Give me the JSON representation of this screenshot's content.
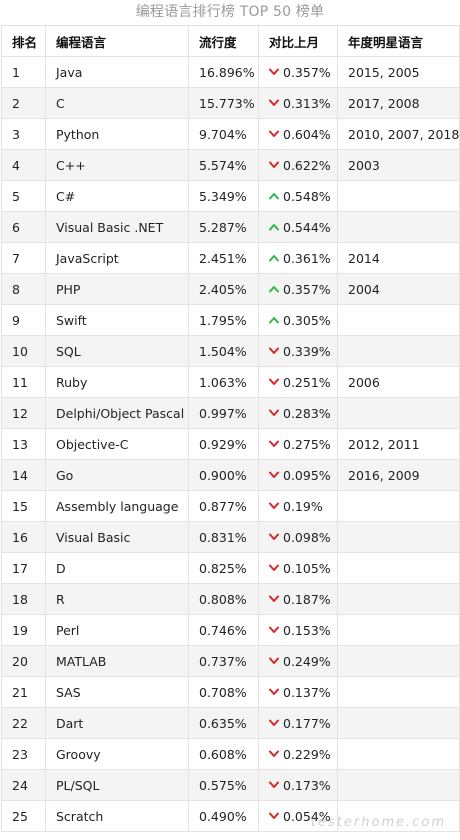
{
  "title": "编程语言排行榜 TOP 50 榜单",
  "headers": [
    "排名",
    "编程语言",
    "流行度",
    "对比上月",
    "年度明星语言"
  ],
  "colors": {
    "down": "#d9262b",
    "up": "#2db84d"
  },
  "rows": [
    {
      "rank": "1",
      "lang": "Java",
      "pop": "16.896%",
      "dir": "down",
      "change": "0.357%",
      "star": "2015, 2005"
    },
    {
      "rank": "2",
      "lang": "C",
      "pop": "15.773%",
      "dir": "down",
      "change": "0.313%",
      "star": "2017, 2008"
    },
    {
      "rank": "3",
      "lang": "Python",
      "pop": "9.704%",
      "dir": "down",
      "change": "0.604%",
      "star": "2010, 2007, 2018"
    },
    {
      "rank": "4",
      "lang": "C++",
      "pop": "5.574%",
      "dir": "down",
      "change": "0.622%",
      "star": "2003"
    },
    {
      "rank": "5",
      "lang": "C#",
      "pop": "5.349%",
      "dir": "up",
      "change": "0.548%",
      "star": ""
    },
    {
      "rank": "6",
      "lang": "Visual Basic .NET",
      "pop": "5.287%",
      "dir": "up",
      "change": "0.544%",
      "star": ""
    },
    {
      "rank": "7",
      "lang": "JavaScript",
      "pop": "2.451%",
      "dir": "up",
      "change": "0.361%",
      "star": "2014"
    },
    {
      "rank": "8",
      "lang": "PHP",
      "pop": "2.405%",
      "dir": "up",
      "change": "0.357%",
      "star": "2004"
    },
    {
      "rank": "9",
      "lang": "Swift",
      "pop": "1.795%",
      "dir": "up",
      "change": "0.305%",
      "star": ""
    },
    {
      "rank": "10",
      "lang": "SQL",
      "pop": "1.504%",
      "dir": "down",
      "change": "0.339%",
      "star": ""
    },
    {
      "rank": "11",
      "lang": "Ruby",
      "pop": "1.063%",
      "dir": "down",
      "change": "0.251%",
      "star": "2006"
    },
    {
      "rank": "12",
      "lang": "Delphi/Object Pascal",
      "pop": "0.997%",
      "dir": "down",
      "change": "0.283%",
      "star": ""
    },
    {
      "rank": "13",
      "lang": "Objective-C",
      "pop": "0.929%",
      "dir": "down",
      "change": "0.275%",
      "star": "2012, 2011"
    },
    {
      "rank": "14",
      "lang": "Go",
      "pop": "0.900%",
      "dir": "down",
      "change": "0.095%",
      "star": "2016, 2009"
    },
    {
      "rank": "15",
      "lang": "Assembly language",
      "pop": "0.877%",
      "dir": "down",
      "change": "0.19%",
      "star": ""
    },
    {
      "rank": "16",
      "lang": "Visual Basic",
      "pop": "0.831%",
      "dir": "down",
      "change": "0.098%",
      "star": ""
    },
    {
      "rank": "17",
      "lang": "D",
      "pop": "0.825%",
      "dir": "down",
      "change": "0.105%",
      "star": ""
    },
    {
      "rank": "18",
      "lang": "R",
      "pop": "0.808%",
      "dir": "down",
      "change": "0.187%",
      "star": ""
    },
    {
      "rank": "19",
      "lang": "Perl",
      "pop": "0.746%",
      "dir": "down",
      "change": "0.153%",
      "star": ""
    },
    {
      "rank": "20",
      "lang": "MATLAB",
      "pop": "0.737%",
      "dir": "down",
      "change": "0.249%",
      "star": ""
    },
    {
      "rank": "21",
      "lang": "SAS",
      "pop": "0.708%",
      "dir": "down",
      "change": "0.137%",
      "star": ""
    },
    {
      "rank": "22",
      "lang": "Dart",
      "pop": "0.635%",
      "dir": "down",
      "change": "0.177%",
      "star": ""
    },
    {
      "rank": "23",
      "lang": "Groovy",
      "pop": "0.608%",
      "dir": "down",
      "change": "0.229%",
      "star": ""
    },
    {
      "rank": "24",
      "lang": "PL/SQL",
      "pop": "0.575%",
      "dir": "down",
      "change": "0.173%",
      "star": ""
    },
    {
      "rank": "25",
      "lang": "Scratch",
      "pop": "0.490%",
      "dir": "down",
      "change": "0.054%",
      "star": ""
    }
  ],
  "watermark": "testerhome.com"
}
